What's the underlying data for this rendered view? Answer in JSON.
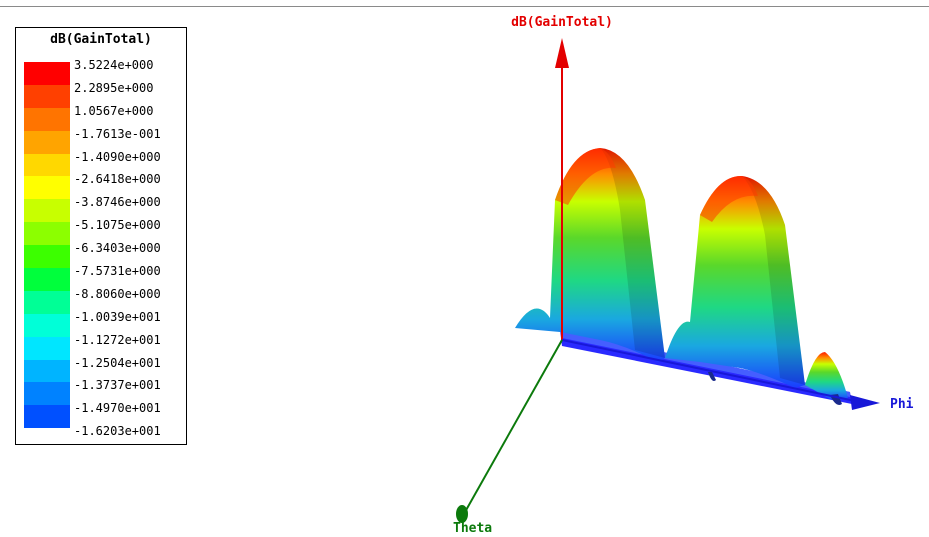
{
  "chart_data": {
    "type": "surface-3d",
    "quantity": "dB(GainTotal)",
    "legend": {
      "title": "dB(GainTotal)",
      "placement": "top-left",
      "levels": [
        "3.5224e+000",
        "2.2895e+000",
        "1.0567e+000",
        "-1.7613e-001",
        "-1.4090e+000",
        "-2.6418e+000",
        "-3.8746e+000",
        "-5.1075e+000",
        "-6.3403e+000",
        "-7.5731e+000",
        "-8.8060e+000",
        "-1.0039e+001",
        "-1.1272e+001",
        "-1.2504e+001",
        "-1.3737e+001",
        "-1.4970e+001",
        "-1.6203e+001"
      ],
      "colors": [
        "#ff0000",
        "#ff4000",
        "#ff7400",
        "#ffa400",
        "#ffd800",
        "#ffff00",
        "#c8ff00",
        "#8cff00",
        "#3cff00",
        "#00ff3c",
        "#00ff96",
        "#00ffd8",
        "#00e6ff",
        "#00b4ff",
        "#0082ff",
        "#0050ff",
        "#0000ff"
      ]
    },
    "axes": {
      "z": "dB(GainTotal)",
      "x": "Phi",
      "y": "Theta"
    },
    "colors": {
      "z_axis": "#e30000",
      "x_axis": "#1818d8",
      "y_axis": "#0c7a0c"
    },
    "zlim": [
      -16.203,
      3.5224
    ],
    "peaks": [
      3.5224,
      3.5224
    ]
  }
}
